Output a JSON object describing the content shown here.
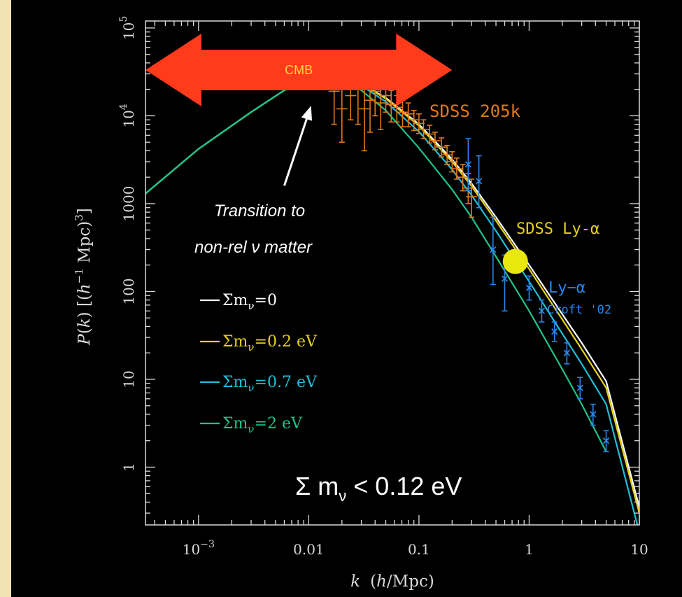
{
  "colors": {
    "background": "#000000",
    "frame": "#f1e2b4",
    "axes": "#d9d9d9",
    "sdss_data": "#e07a16",
    "lya_data": "#2a86e8",
    "cmb_arrow": "#ff3b1c",
    "cmb_text": "#ffd83a",
    "lya_point": "#e8e80c"
  },
  "chart_data": {
    "type": "line",
    "xlabel": "k (h/Mpc)",
    "ylabel": "P(k) [(h^-1 Mpc)^3]",
    "xscale": "log",
    "yscale": "log",
    "xlim": [
      0.00033,
      10
    ],
    "ylim": [
      0.22,
      120000
    ],
    "x_tick_labels": [
      "10^-3",
      "0.01",
      "0.1",
      "1",
      "10"
    ],
    "x_tick_values": [
      0.001,
      0.01,
      0.1,
      1,
      10
    ],
    "y_tick_labels": [
      "1",
      "10",
      "100",
      "1000",
      "10^4",
      "10^5"
    ],
    "y_tick_values": [
      1,
      10,
      100,
      1000,
      10000,
      100000
    ],
    "series": [
      {
        "name": "Σm_ν=0",
        "legend_label": "Σm_ν=0",
        "color": "#ffffff",
        "x": [
          0.00033,
          0.001,
          0.003,
          0.006,
          0.01,
          0.014,
          0.02,
          0.03,
          0.05,
          0.1,
          0.2,
          0.3,
          0.5,
          0.7,
          1,
          2,
          3,
          5,
          10
        ],
        "y": [
          1300,
          4200,
          11000,
          19500,
          25500,
          27500,
          26500,
          23000,
          16000,
          8000,
          3200,
          1700,
          700,
          380,
          200,
          55,
          26,
          9.5,
          0.35
        ]
      },
      {
        "name": "Σm_ν=0.2 eV",
        "legend_label": "Σm_ν=0.2 eV",
        "color": "#e8d11c",
        "x": [
          0.00033,
          0.001,
          0.003,
          0.006,
          0.01,
          0.014,
          0.02,
          0.03,
          0.05,
          0.1,
          0.2,
          0.3,
          0.5,
          0.7,
          1,
          2,
          3,
          5,
          10
        ],
        "y": [
          1300,
          4200,
          11000,
          19500,
          25500,
          27500,
          26500,
          23000,
          15700,
          7700,
          3000,
          1580,
          640,
          345,
          180,
          48,
          22,
          8,
          0.3
        ]
      },
      {
        "name": "Σm_ν=0.7 eV",
        "legend_label": "Σm_ν=0.7 eV",
        "color": "#1cc0d8",
        "x": [
          0.00033,
          0.001,
          0.003,
          0.006,
          0.01,
          0.014,
          0.02,
          0.03,
          0.05,
          0.1,
          0.2,
          0.3,
          0.5,
          0.7,
          1,
          2,
          3,
          5,
          10
        ],
        "y": [
          1300,
          4200,
          11000,
          19500,
          25500,
          27500,
          26000,
          22000,
          14500,
          6600,
          2450,
          1250,
          490,
          255,
          130,
          33,
          15,
          5.2,
          0.18
        ]
      },
      {
        "name": "Σm_ν=2 eV",
        "legend_label": "Σm_ν=2 eV",
        "color": "#1ec48a",
        "x": [
          0.00033,
          0.001,
          0.003,
          0.006,
          0.01,
          0.014,
          0.02,
          0.03,
          0.05,
          0.1,
          0.2,
          0.3,
          0.5,
          0.7,
          1,
          2,
          3,
          5
        ],
        "y": [
          1300,
          4200,
          11000,
          19500,
          25500,
          27300,
          25000,
          19500,
          11500,
          4300,
          1450,
          700,
          250,
          125,
          60,
          13,
          5.2,
          1.5
        ]
      }
    ],
    "data_sets": [
      {
        "name": "SDSS 205k",
        "color": "#e07a16",
        "points": [
          {
            "x": 0.017,
            "y": 19000,
            "err_low": 8000,
            "err_high": 33000
          },
          {
            "x": 0.02,
            "y": 12000,
            "err_low": 5000,
            "err_high": 26000
          },
          {
            "x": 0.024,
            "y": 17000,
            "err_low": 9000,
            "err_high": 30000
          },
          {
            "x": 0.028,
            "y": 20000,
            "err_low": 8000,
            "err_high": 32000
          },
          {
            "x": 0.032,
            "y": 12000,
            "err_low": 4000,
            "err_high": 22000
          },
          {
            "x": 0.036,
            "y": 15000,
            "err_low": 6500,
            "err_high": 24000
          },
          {
            "x": 0.04,
            "y": 19000,
            "err_low": 10000,
            "err_high": 28000
          },
          {
            "x": 0.045,
            "y": 14000,
            "err_low": 7000,
            "err_high": 22000
          },
          {
            "x": 0.05,
            "y": 17000,
            "err_low": 11000,
            "err_high": 24000
          },
          {
            "x": 0.056,
            "y": 13500,
            "err_low": 8500,
            "err_high": 19500
          },
          {
            "x": 0.063,
            "y": 12500,
            "err_low": 8500,
            "err_high": 17000
          },
          {
            "x": 0.071,
            "y": 11000,
            "err_low": 7500,
            "err_high": 15000
          },
          {
            "x": 0.08,
            "y": 10500,
            "err_low": 7500,
            "err_high": 14000
          },
          {
            "x": 0.09,
            "y": 9000,
            "err_low": 6800,
            "err_high": 11500
          },
          {
            "x": 0.1,
            "y": 8200,
            "err_low": 6300,
            "err_high": 10500
          },
          {
            "x": 0.11,
            "y": 7000,
            "err_low": 5500,
            "err_high": 9000
          },
          {
            "x": 0.125,
            "y": 6200,
            "err_low": 4900,
            "err_high": 7800
          },
          {
            "x": 0.14,
            "y": 5200,
            "err_low": 4100,
            "err_high": 6500
          },
          {
            "x": 0.16,
            "y": 4400,
            "err_low": 3400,
            "err_high": 5600
          },
          {
            "x": 0.18,
            "y": 3600,
            "err_low": 2800,
            "err_high": 4600
          },
          {
            "x": 0.2,
            "y": 3000,
            "err_low": 2300,
            "err_high": 3900
          },
          {
            "x": 0.22,
            "y": 2500,
            "err_low": 1900,
            "err_high": 3300
          },
          {
            "x": 0.25,
            "y": 2000,
            "err_low": 1400,
            "err_high": 2800
          },
          {
            "x": 0.28,
            "y": 1500,
            "err_low": 1000,
            "err_high": 2200
          },
          {
            "x": 0.3,
            "y": 1200,
            "err_low": 700,
            "err_high": 1900
          }
        ]
      },
      {
        "name": "Ly-α Croft '02",
        "color": "#2a86e8",
        "points": [
          {
            "x": 0.28,
            "y": 2800,
            "err_low": 1400,
            "err_high": 5500
          },
          {
            "x": 0.35,
            "y": 1800,
            "err_low": 900,
            "err_high": 3500
          },
          {
            "x": 0.47,
            "y": 300,
            "err_low": 120,
            "err_high": 700
          },
          {
            "x": 0.6,
            "y": 140,
            "err_low": 60,
            "err_high": 260
          },
          {
            "x": 1.0,
            "y": 110,
            "err_low": 80,
            "err_high": 150
          },
          {
            "x": 1.3,
            "y": 60,
            "err_low": 45,
            "err_high": 80
          },
          {
            "x": 1.7,
            "y": 35,
            "err_low": 27,
            "err_high": 45
          },
          {
            "x": 2.2,
            "y": 20,
            "err_low": 15,
            "err_high": 26
          },
          {
            "x": 2.9,
            "y": 8,
            "err_low": 6,
            "err_high": 10.5
          },
          {
            "x": 3.8,
            "y": 4,
            "err_low": 3,
            "err_high": 5.2
          },
          {
            "x": 5.0,
            "y": 2,
            "err_low": 1.5,
            "err_high": 2.6
          }
        ]
      }
    ],
    "lya_point": {
      "name": "SDSS Ly-α",
      "x": 0.75,
      "y": 220
    },
    "annotations": {
      "cmb": "CMB",
      "sdss_205k": "SDSS 205k",
      "sdss_lya": "SDSS Ly-α",
      "lya": "Ly−α",
      "croft": "Croft '02",
      "transition_line1": "Transition to",
      "transition_line2": "non-rel ν matter",
      "bound_sigma": "Σ",
      "bound_m": "m",
      "bound_nu": "ν",
      "bound_rest": " < 0.12 eV"
    },
    "cmb_k_range": [
      0.00033,
      0.2
    ],
    "transition_arrow": {
      "from": [
        0.006,
        1600
      ],
      "to": [
        0.0105,
        13000
      ]
    },
    "legend_position": "left-middle"
  }
}
